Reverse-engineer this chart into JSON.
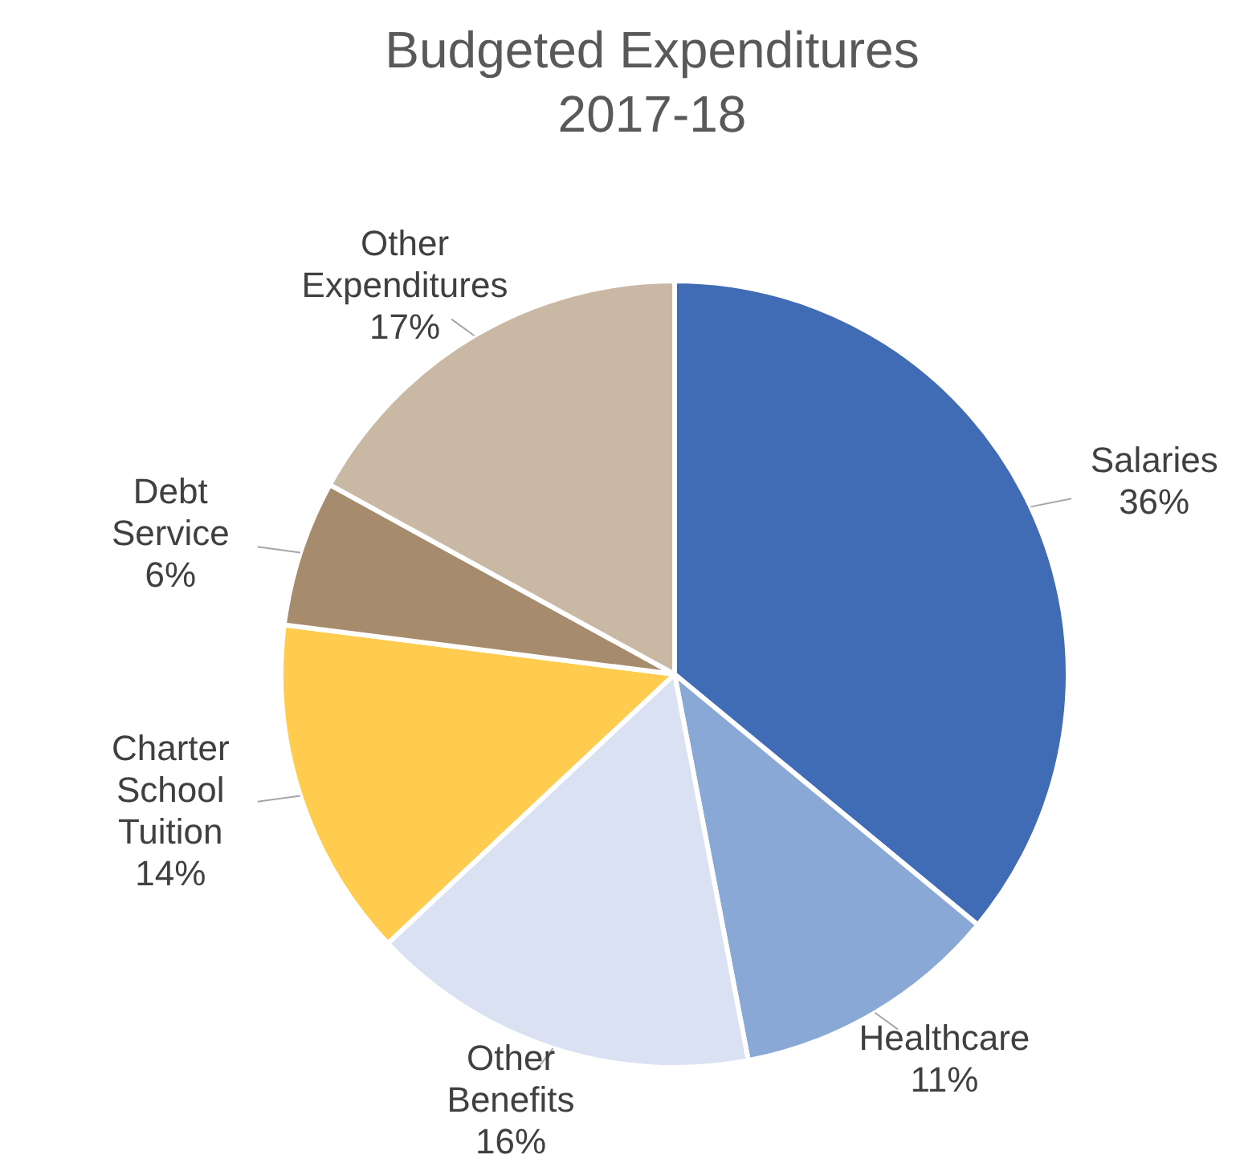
{
  "chart_data": {
    "type": "pie",
    "title": "Budgeted Expenditures\n2017-18",
    "categories": [
      "Salaries",
      "Healthcare",
      "Other Benefits",
      "Charter School Tuition",
      "Debt Service",
      "Other Expenditures"
    ],
    "values": [
      36,
      11,
      16,
      14,
      6,
      17
    ],
    "colors": [
      "#3f6cb5",
      "#8aa8d6",
      "#d9e1f2",
      "#ffcc4f",
      "#a68b6c",
      "#c8b8a4"
    ],
    "value_labels": [
      "36%",
      "11%",
      "16%",
      "14%",
      "6%",
      "17%"
    ]
  }
}
